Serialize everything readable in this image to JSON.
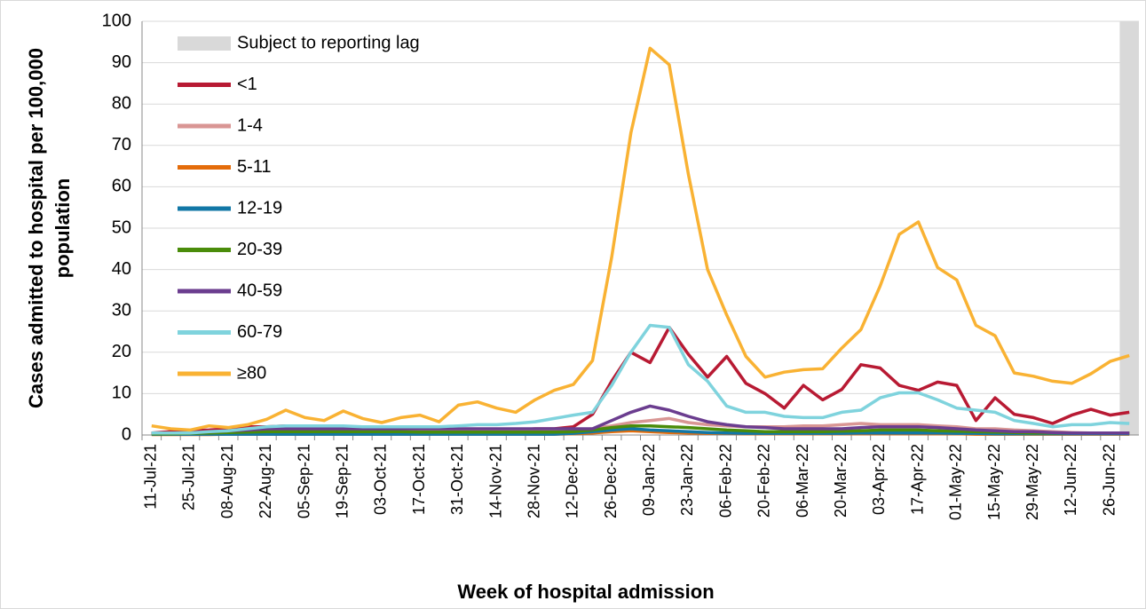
{
  "chart_data": {
    "type": "line",
    "xlabel": "Week of hospital admission",
    "ylabel": [
      "Cases admitted to hospital per 100,000",
      "population"
    ],
    "categories": [
      "11-Jul-21",
      null,
      "25-Jul-21",
      null,
      "08-Aug-21",
      null,
      "22-Aug-21",
      null,
      "05-Sep-21",
      null,
      "19-Sep-21",
      null,
      "03-Oct-21",
      null,
      "17-Oct-21",
      null,
      "31-Oct-21",
      null,
      "14-Nov-21",
      null,
      "28-Nov-21",
      null,
      "12-Dec-21",
      null,
      "26-Dec-21",
      null,
      "09-Jan-22",
      null,
      "23-Jan-22",
      null,
      "06-Feb-22",
      null,
      "20-Feb-22",
      null,
      "06-Mar-22",
      null,
      "20-Mar-22",
      null,
      "03-Apr-22",
      null,
      "17-Apr-22",
      null,
      "01-May-22",
      null,
      "15-May-22",
      null,
      "29-May-22",
      null,
      "12-Jun-22",
      null,
      "26-Jun-22",
      null
    ],
    "ylim": [
      0,
      100
    ],
    "yticks": [
      0,
      10,
      20,
      30,
      40,
      50,
      60,
      70,
      80,
      90,
      100
    ],
    "grid": true,
    "lag": {
      "name": "Subject to reporting lag",
      "color": "#d9d9d9",
      "weeks": 1
    },
    "series": [
      {
        "name": "<1",
        "color": "#b81a33",
        "values": [
          0.5,
          0.8,
          1,
          1.2,
          1.5,
          2,
          2,
          2.2,
          2.2,
          2,
          2,
          1.8,
          1.5,
          1.5,
          1.5,
          1.2,
          1,
          1.2,
          1.2,
          1.2,
          1.5,
          1.5,
          2,
          5,
          13,
          20,
          17.5,
          26,
          19.5,
          14,
          19,
          12.5,
          10,
          6.5,
          12,
          8.5,
          11,
          17,
          16.2,
          12,
          10.8,
          12.8,
          12,
          3.5,
          9,
          5,
          4.2,
          2.8,
          4.8,
          6.2,
          4.8,
          5.5
        ]
      },
      {
        "name": "1-4",
        "color": "#d99694",
        "values": [
          0.3,
          0.4,
          0.5,
          0.6,
          0.8,
          1,
          1,
          1.2,
          1.2,
          1,
          1,
          1,
          1,
          1,
          1,
          1,
          1,
          1,
          1,
          1,
          1,
          1,
          1.2,
          1.5,
          2.2,
          3,
          3.5,
          4,
          3,
          2.5,
          2.2,
          2,
          2,
          2,
          2.2,
          2.2,
          2.5,
          2.8,
          2.5,
          2.5,
          2.5,
          2.2,
          2,
          1.5,
          1.5,
          1.2,
          1,
          0.8,
          0.6,
          0.5,
          0.5,
          0.5
        ]
      },
      {
        "name": "5-11",
        "color": "#e46c0a",
        "values": [
          0.1,
          0.1,
          0.1,
          0.1,
          0.2,
          0.2,
          0.2,
          0.2,
          0.2,
          0.2,
          0.2,
          0.2,
          0.2,
          0.2,
          0.2,
          0.2,
          0.2,
          0.2,
          0.2,
          0.2,
          0.2,
          0.2,
          0.3,
          0.5,
          0.8,
          1,
          0.8,
          0.6,
          0.5,
          0.4,
          0.4,
          0.3,
          0.3,
          0.3,
          0.3,
          0.3,
          0.3,
          0.3,
          0.3,
          0.3,
          0.3,
          0.3,
          0.3,
          0.2,
          0.2,
          0.2,
          0.2,
          0.2,
          0.2,
          0.2,
          0.2,
          0.2
        ]
      },
      {
        "name": "12-19",
        "color": "#1177a6",
        "values": [
          0.2,
          0.2,
          0.2,
          0.2,
          0.2,
          0.2,
          0.2,
          0.2,
          0.2,
          0.2,
          0.2,
          0.2,
          0.2,
          0.2,
          0.2,
          0.2,
          0.2,
          0.2,
          0.2,
          0.2,
          0.2,
          0.2,
          0.4,
          0.8,
          1.2,
          1.5,
          1.2,
          1,
          0.8,
          0.6,
          0.5,
          0.4,
          0.4,
          0.4,
          0.4,
          0.4,
          0.4,
          0.5,
          0.5,
          0.5,
          0.5,
          0.5,
          0.4,
          0.4,
          0.3,
          0.3,
          0.3,
          0.3,
          0.3,
          0.3,
          0.3,
          0.3
        ]
      },
      {
        "name": "20-39",
        "color": "#4a8c0a",
        "values": [
          0.3,
          0.3,
          0.4,
          0.5,
          0.6,
          0.7,
          0.8,
          0.8,
          0.8,
          0.8,
          0.8,
          0.8,
          0.8,
          0.8,
          0.7,
          0.7,
          0.7,
          0.7,
          0.7,
          0.7,
          0.7,
          0.7,
          0.8,
          1.2,
          1.8,
          2.2,
          2.2,
          2,
          1.8,
          1.5,
          1.2,
          1,
          0.8,
          0.8,
          0.8,
          0.8,
          0.9,
          1,
          1.2,
          1.2,
          1.2,
          1,
          0.9,
          0.8,
          0.7,
          0.6,
          0.5,
          0.5,
          0.5,
          0.5,
          0.5,
          0.5
        ]
      },
      {
        "name": "40-59",
        "color": "#6b3d8f",
        "values": [
          0.5,
          0.5,
          0.6,
          0.8,
          1,
          1.2,
          1.5,
          1.5,
          1.5,
          1.5,
          1.5,
          1.5,
          1.5,
          1.5,
          1.5,
          1.5,
          1.5,
          1.5,
          1.5,
          1.5,
          1.5,
          1.5,
          1.5,
          1.5,
          3.5,
          5.5,
          7,
          6,
          4.5,
          3.2,
          2.5,
          2,
          1.8,
          1.5,
          1.5,
          1.5,
          1.5,
          1.8,
          2,
          2,
          2,
          1.8,
          1.5,
          1.2,
          1,
          0.8,
          0.8,
          0.6,
          0.5,
          0.5,
          0.5,
          0.5
        ]
      },
      {
        "name": "60-79",
        "color": "#7fd3dd",
        "values": [
          0.5,
          0.5,
          0.5,
          0.8,
          1,
          1.5,
          2,
          2.2,
          2.2,
          2.2,
          2.2,
          2,
          2,
          2,
          2,
          2,
          2.2,
          2.5,
          2.5,
          2.8,
          3.2,
          4,
          4.8,
          5.5,
          12,
          20,
          26.5,
          26,
          17,
          13,
          7,
          5.5,
          5.5,
          4.5,
          4.2,
          4.2,
          5.5,
          6,
          9,
          10.2,
          10.2,
          8.5,
          6.5,
          6,
          5.5,
          3.5,
          2.8,
          2,
          2.5,
          2.5,
          3,
          2.8
        ]
      },
      {
        "name": "≥80",
        "color": "#f9b233",
        "values": [
          2.2,
          1.5,
          1.2,
          2.2,
          1.8,
          2.5,
          3.8,
          6,
          4.2,
          3.5,
          5.8,
          4,
          3,
          4.2,
          4.8,
          3.2,
          7.2,
          8,
          6.5,
          5.5,
          8.5,
          10.8,
          12.2,
          18,
          43,
          73,
          93.5,
          89.5,
          63,
          40,
          29,
          19,
          14,
          15.2,
          15.8,
          16,
          21,
          25.5,
          36,
          48.5,
          51.5,
          40.5,
          37.5,
          26.5,
          24,
          15,
          14.2,
          13,
          12.5,
          14.8,
          17.8,
          19.2
        ]
      }
    ]
  }
}
